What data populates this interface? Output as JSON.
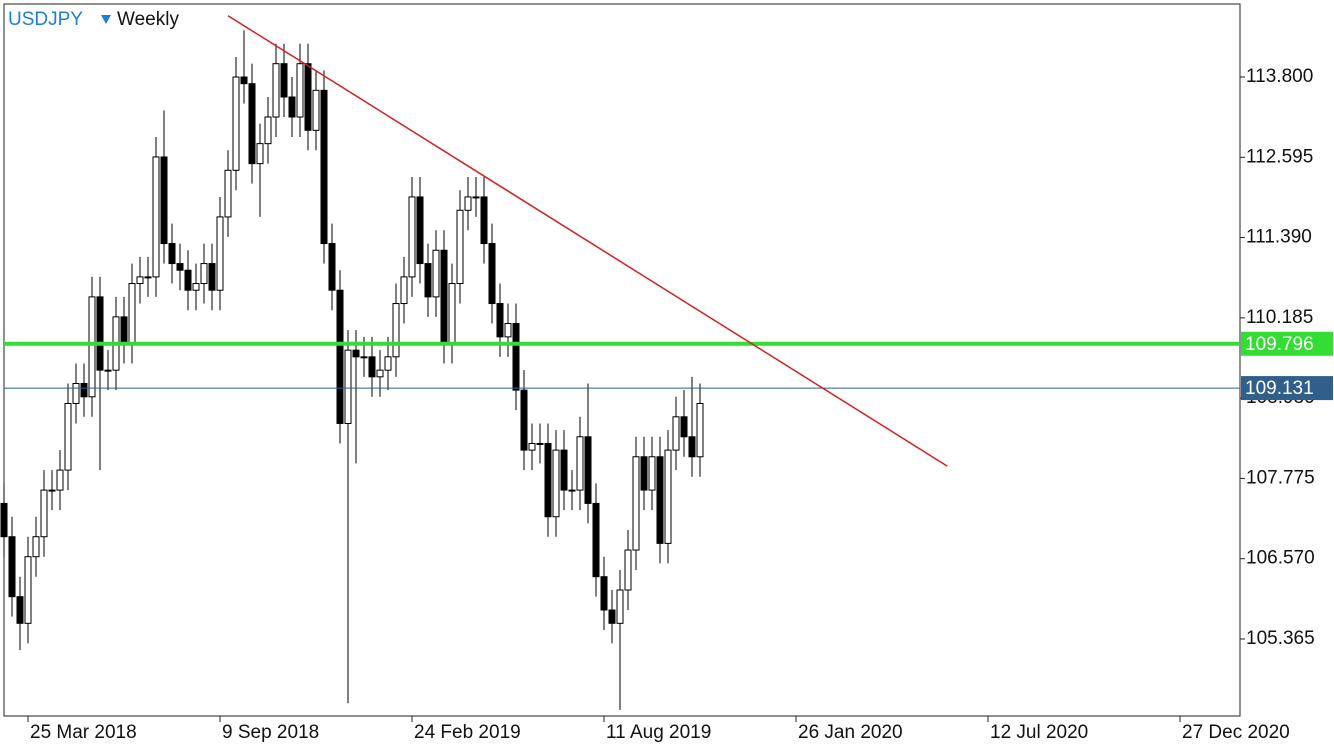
{
  "chart_data": {
    "type": "candlestick",
    "symbol": "USDJPY",
    "timeframe": "Weekly",
    "xlim": [
      0,
      154.5
    ],
    "xticks": [
      {
        "value": 3,
        "label": "25 Mar 2018"
      },
      {
        "value": 27,
        "label": "9 Sep 2018"
      },
      {
        "value": 51,
        "label": "24 Feb 2019"
      },
      {
        "value": 75,
        "label": "11 Aug 2019"
      },
      {
        "value": 99,
        "label": "26 Jan 2020"
      },
      {
        "value": 123,
        "label": "12 Jul 2020"
      },
      {
        "value": 147,
        "label": "27 Dec 2020"
      }
    ],
    "ylim": [
      104.209,
      114.896
    ],
    "yticks": [
      {
        "value": 113.8,
        "label": "113.800"
      },
      112.595,
      {
        "value": 111.39,
        "label": "111.390"
      },
      110.185,
      {
        "value": 108.98,
        "label": "108.980"
      },
      107.775,
      {
        "value": 106.57,
        "label": "106.570"
      },
      105.365
    ],
    "up_color": "#ffffff",
    "down_color": "#000000",
    "open": [
      107.4,
      106.9,
      106.0,
      105.6,
      106.6,
      106.9,
      107.6,
      107.6,
      107.9,
      108.9,
      109.2,
      109.0,
      110.5,
      109.4,
      109.4,
      110.2,
      109.8,
      110.7,
      110.8,
      110.8,
      112.6,
      111.3,
      111.0,
      110.9,
      110.6,
      110.7,
      111.0,
      110.6,
      111.7,
      112.4,
      113.8,
      113.7,
      112.5,
      112.8,
      113.2,
      114.0,
      113.5,
      113.2,
      114.0,
      113.0,
      113.6,
      111.3,
      110.6,
      108.6,
      109.7,
      109.6,
      109.6,
      109.3,
      109.4,
      109.6,
      110.4,
      110.8,
      112.0,
      111.0,
      110.5,
      111.2,
      109.8,
      110.7,
      111.8,
      112.0,
      112.0,
      111.3,
      110.4,
      109.9,
      110.1,
      109.1,
      108.2,
      108.3,
      108.3,
      107.2,
      108.2,
      107.6,
      107.6,
      108.4,
      107.4,
      106.3,
      105.8,
      105.6,
      106.1,
      106.7,
      108.1,
      107.6,
      108.1,
      106.8,
      108.2,
      108.7,
      108.4,
      108.1
    ],
    "high": [
      107.7,
      107.2,
      106.3,
      106.9,
      107.2,
      107.9,
      107.9,
      108.2,
      109.2,
      109.5,
      109.5,
      110.8,
      110.8,
      109.7,
      110.5,
      110.5,
      111.0,
      111.1,
      111.1,
      112.9,
      113.3,
      111.6,
      111.3,
      111.2,
      111.0,
      111.3,
      111.3,
      112.0,
      112.7,
      114.1,
      114.5,
      114.0,
      113.1,
      113.5,
      114.3,
      114.3,
      113.8,
      114.3,
      114.3,
      113.9,
      113.9,
      111.6,
      110.9,
      110.0,
      110.0,
      109.9,
      109.9,
      109.7,
      109.9,
      110.7,
      111.1,
      112.3,
      112.3,
      111.3,
      111.5,
      111.5,
      111.0,
      112.1,
      112.3,
      112.3,
      112.3,
      111.6,
      110.7,
      110.4,
      110.4,
      109.4,
      108.6,
      108.6,
      108.6,
      108.5,
      108.5,
      107.9,
      108.7,
      109.2,
      107.7,
      106.6,
      106.1,
      106.4,
      107.0,
      108.4,
      108.4,
      108.4,
      108.4,
      108.5,
      109.0,
      109.1,
      109.3,
      109.2
    ],
    "low": [
      106.6,
      105.7,
      105.2,
      105.3,
      106.3,
      106.6,
      107.3,
      107.3,
      107.6,
      108.6,
      108.7,
      108.7,
      107.9,
      109.1,
      109.1,
      109.5,
      109.5,
      110.4,
      110.5,
      110.5,
      111.0,
      110.7,
      110.6,
      110.3,
      110.3,
      110.4,
      110.3,
      110.3,
      111.4,
      112.1,
      113.4,
      112.2,
      111.7,
      112.5,
      112.9,
      113.2,
      112.9,
      112.9,
      112.7,
      112.7,
      111.0,
      110.3,
      108.3,
      104.4,
      108.0,
      109.3,
      109.0,
      109.0,
      109.1,
      109.3,
      110.1,
      110.5,
      110.7,
      110.2,
      110.2,
      109.5,
      109.5,
      110.4,
      111.5,
      111.7,
      111.0,
      110.1,
      109.6,
      109.6,
      108.8,
      107.9,
      107.9,
      108.0,
      106.9,
      106.9,
      107.3,
      107.3,
      107.3,
      107.1,
      106.0,
      105.5,
      105.3,
      104.3,
      105.8,
      106.4,
      107.3,
      107.3,
      106.5,
      106.5,
      107.9,
      108.1,
      107.8,
      107.8
    ],
    "close": [
      106.9,
      106.0,
      105.6,
      106.6,
      106.9,
      107.6,
      107.6,
      107.9,
      108.9,
      109.2,
      109.0,
      110.5,
      109.4,
      109.4,
      110.2,
      109.8,
      110.7,
      110.8,
      110.8,
      112.6,
      111.3,
      111.0,
      110.9,
      110.6,
      110.7,
      111.0,
      110.6,
      111.7,
      112.4,
      113.8,
      113.7,
      112.5,
      112.8,
      113.2,
      114.0,
      113.5,
      113.2,
      114.0,
      113.0,
      113.6,
      111.3,
      110.6,
      108.6,
      109.7,
      109.6,
      109.6,
      109.3,
      109.4,
      109.6,
      110.4,
      110.8,
      112.0,
      111.0,
      110.5,
      111.2,
      109.8,
      110.7,
      111.8,
      112.0,
      112.0,
      111.3,
      110.4,
      109.9,
      110.1,
      109.1,
      108.2,
      108.3,
      108.3,
      107.2,
      108.2,
      107.6,
      107.6,
      108.4,
      107.4,
      106.3,
      105.8,
      105.6,
      106.1,
      106.7,
      108.1,
      107.6,
      108.1,
      106.8,
      108.2,
      108.7,
      108.4,
      108.1,
      108.9
    ],
    "hlines": [
      {
        "value": 109.796,
        "color": "#33dd33"
      },
      {
        "value": 109.131,
        "color": "#2f5f8a"
      }
    ],
    "trendline": {
      "x": [
        28,
        117.9
      ],
      "y": [
        114.72,
        107.96
      ],
      "color": "#d42020"
    }
  }
}
